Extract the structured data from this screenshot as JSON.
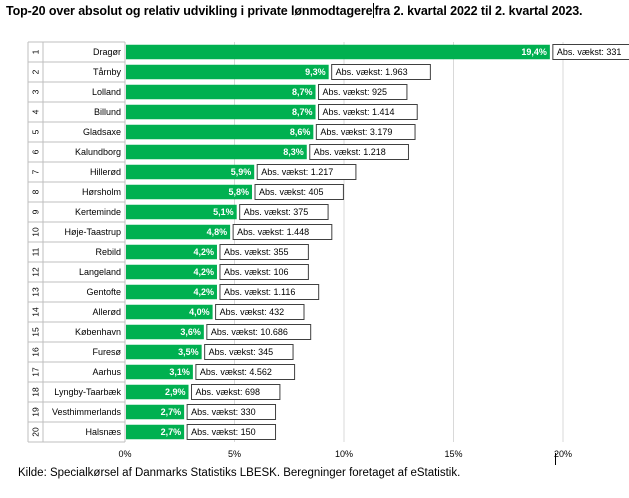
{
  "title_part1": "Top-20 over absolut og relativ udvikling i private lønmodtagere",
  "title_part2": "fra 2. kvartal 2022 til 2. kvartal 2023.",
  "source": "Kilde: Specialkørsel af Danmarks Statistiks LBESK. Beregninger foretaget af eStatistik.",
  "colors": {
    "bar": "#00b050",
    "bar_label": "#ffffff",
    "grid": "#d9d9d9",
    "axis": "#bfbfbf"
  },
  "chart_data": {
    "type": "bar",
    "orientation": "horizontal",
    "title": "Top-20 over absolut og relativ udvikling i private lønmodtagere fra 2. kvartal 2022 til 2. kvartal 2023.",
    "ranks": [
      "1",
      "2",
      "3",
      "4",
      "5",
      "6",
      "7",
      "8",
      "9",
      "10",
      "11",
      "12",
      "13",
      "14",
      "15",
      "16",
      "17",
      "18",
      "19",
      "20"
    ],
    "categories": [
      "Dragør",
      "Tårnby",
      "Lolland",
      "Billund",
      "Gladsaxe",
      "Kalundborg",
      "Hillerød",
      "Hørsholm",
      "Kerteminde",
      "Høje-Taastrup",
      "Rebild",
      "Langeland",
      "Gentofte",
      "Allerød",
      "København",
      "Furesø",
      "Aarhus",
      "Lyngby-Taarbæk",
      "Vesthimmerlands",
      "Halsnæs"
    ],
    "values": [
      19.4,
      9.3,
      8.7,
      8.7,
      8.6,
      8.3,
      5.9,
      5.8,
      5.1,
      4.8,
      4.2,
      4.2,
      4.2,
      4.0,
      3.6,
      3.5,
      3.1,
      2.9,
      2.7,
      2.7
    ],
    "value_labels": [
      "19,4%",
      "9,3%",
      "8,7%",
      "8,7%",
      "8,6%",
      "8,3%",
      "5,9%",
      "5,8%",
      "5,1%",
      "4,8%",
      "4,2%",
      "4,2%",
      "4,2%",
      "4,0%",
      "3,6%",
      "3,5%",
      "3,1%",
      "2,9%",
      "2,7%",
      "2,7%"
    ],
    "annotations": [
      "Abs. vækst:  331",
      "Abs. vækst:  1.963",
      "Abs. vækst:  925",
      "Abs. vækst:  1.414",
      "Abs. vækst:  3.179",
      "Abs. vækst:  1.218",
      "Abs. vækst:  1.217",
      "Abs. vækst:  405",
      "Abs. vækst:  375",
      "Abs. vækst:  1.448",
      "Abs. vækst:  355",
      "Abs. vækst:  106",
      "Abs. vækst:  1.116",
      "Abs. vækst:  432",
      "Abs. vækst:  10.686",
      "Abs. vækst:  345",
      "Abs. vækst:  4.562",
      "Abs. vækst:  698",
      "Abs. vækst:  330",
      "Abs. vækst:  150"
    ],
    "xlim": [
      0,
      20
    ],
    "xticks": [
      0,
      5,
      10,
      15,
      20
    ],
    "xtick_labels": [
      "0%",
      "5%",
      "10%",
      "15%",
      "20%"
    ],
    "xlabel": "",
    "ylabel": "",
    "grid": true
  }
}
